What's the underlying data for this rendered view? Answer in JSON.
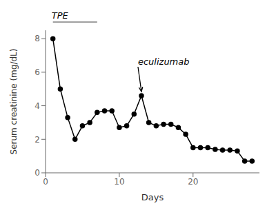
{
  "chart_data": {
    "type": "line",
    "x": [
      1,
      2,
      3,
      4,
      5,
      6,
      7,
      8,
      9,
      10,
      11,
      12,
      13,
      14,
      15,
      16,
      17,
      18,
      19,
      20,
      21,
      22,
      23,
      24,
      25,
      26,
      27,
      28
    ],
    "values": [
      8.0,
      5.0,
      3.3,
      2.0,
      2.8,
      3.0,
      3.6,
      3.7,
      3.7,
      2.7,
      2.8,
      3.5,
      4.6,
      3.0,
      2.8,
      2.9,
      2.9,
      2.7,
      2.3,
      1.5,
      1.5,
      1.5,
      1.4,
      1.35,
      1.35,
      1.3,
      0.7,
      0.7
    ],
    "xlabel": "Days",
    "ylabel": "Serum creatinine (mg/dL)",
    "xlim": [
      0,
      29
    ],
    "ylim": [
      0,
      8.5
    ],
    "xticks": [
      0,
      10,
      20
    ],
    "yticks": [
      0,
      2,
      4,
      6,
      8
    ],
    "color": "#000000",
    "marker": "circle",
    "grid": false,
    "annotations": [
      {
        "text": "TPE",
        "x": [
          1,
          7
        ]
      },
      {
        "text": "eculizumab",
        "x": 13,
        "y": 4.6
      }
    ]
  }
}
